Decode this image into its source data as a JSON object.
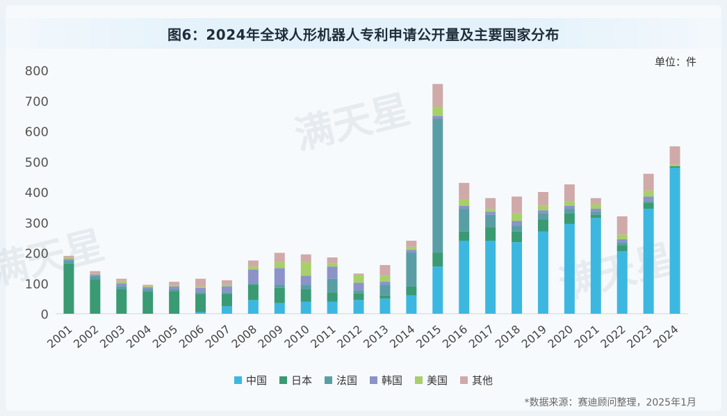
{
  "header": {
    "title": "图6：2024年全球人形机器人专利申请公开量及主要国家分布",
    "unit": "单位：件"
  },
  "footer": {
    "source": "*数据来源：赛迪顾问整理，2025年1月"
  },
  "watermark": "满天星",
  "chart_data": {
    "type": "bar",
    "stacked": true,
    "title": "图6：2024年全球人形机器人专利申请公开量及主要国家分布",
    "xlabel": "",
    "ylabel": "",
    "unit": "单位：件",
    "ylim": [
      0,
      800
    ],
    "yticks": [
      0,
      100,
      200,
      300,
      400,
      500,
      600,
      700,
      800
    ],
    "grid": false,
    "legend_position": "bottom",
    "categories": [
      "2001",
      "2002",
      "2003",
      "2004",
      "2005",
      "2006",
      "2007",
      "2008",
      "2009",
      "2010",
      "2011",
      "2012",
      "2013",
      "2014",
      "2015",
      "2016",
      "2017",
      "2018",
      "2019",
      "2020",
      "2021",
      "2022",
      "2023",
      "2024"
    ],
    "series": [
      {
        "name": "中国",
        "color": "#3cb8e0",
        "values": [
          0,
          0,
          0,
          0,
          0,
          5,
          25,
          45,
          35,
          40,
          40,
          45,
          50,
          60,
          155,
          240,
          240,
          235,
          270,
          295,
          315,
          205,
          345,
          480
        ]
      },
      {
        "name": "日本",
        "color": "#3a9a73",
        "values": [
          165,
          112,
          80,
          72,
          75,
          60,
          40,
          50,
          50,
          40,
          30,
          22,
          10,
          30,
          45,
          30,
          45,
          35,
          40,
          35,
          10,
          20,
          20,
          5
        ]
      },
      {
        "name": "法国",
        "color": "#5a9ea5",
        "values": [
          10,
          12,
          10,
          10,
          5,
          5,
          5,
          5,
          10,
          15,
          45,
          10,
          35,
          110,
          440,
          75,
          40,
          20,
          20,
          15,
          10,
          10,
          5,
          0
        ]
      },
      {
        "name": "韩国",
        "color": "#8b93c9",
        "values": [
          5,
          5,
          10,
          5,
          10,
          15,
          20,
          45,
          55,
          30,
          40,
          25,
          10,
          10,
          10,
          10,
          10,
          15,
          10,
          10,
          10,
          10,
          15,
          0
        ]
      },
      {
        "name": "美国",
        "color": "#a8cf6a",
        "values": [
          3,
          3,
          8,
          3,
          3,
          5,
          5,
          10,
          20,
          45,
          10,
          25,
          20,
          10,
          30,
          20,
          10,
          25,
          15,
          15,
          15,
          15,
          20,
          5
        ]
      },
      {
        "name": "其他",
        "color": "#cfaaa8",
        "values": [
          7,
          8,
          7,
          5,
          12,
          25,
          15,
          20,
          30,
          25,
          20,
          5,
          35,
          20,
          75,
          55,
          35,
          55,
          45,
          55,
          20,
          60,
          55,
          60
        ]
      }
    ]
  }
}
